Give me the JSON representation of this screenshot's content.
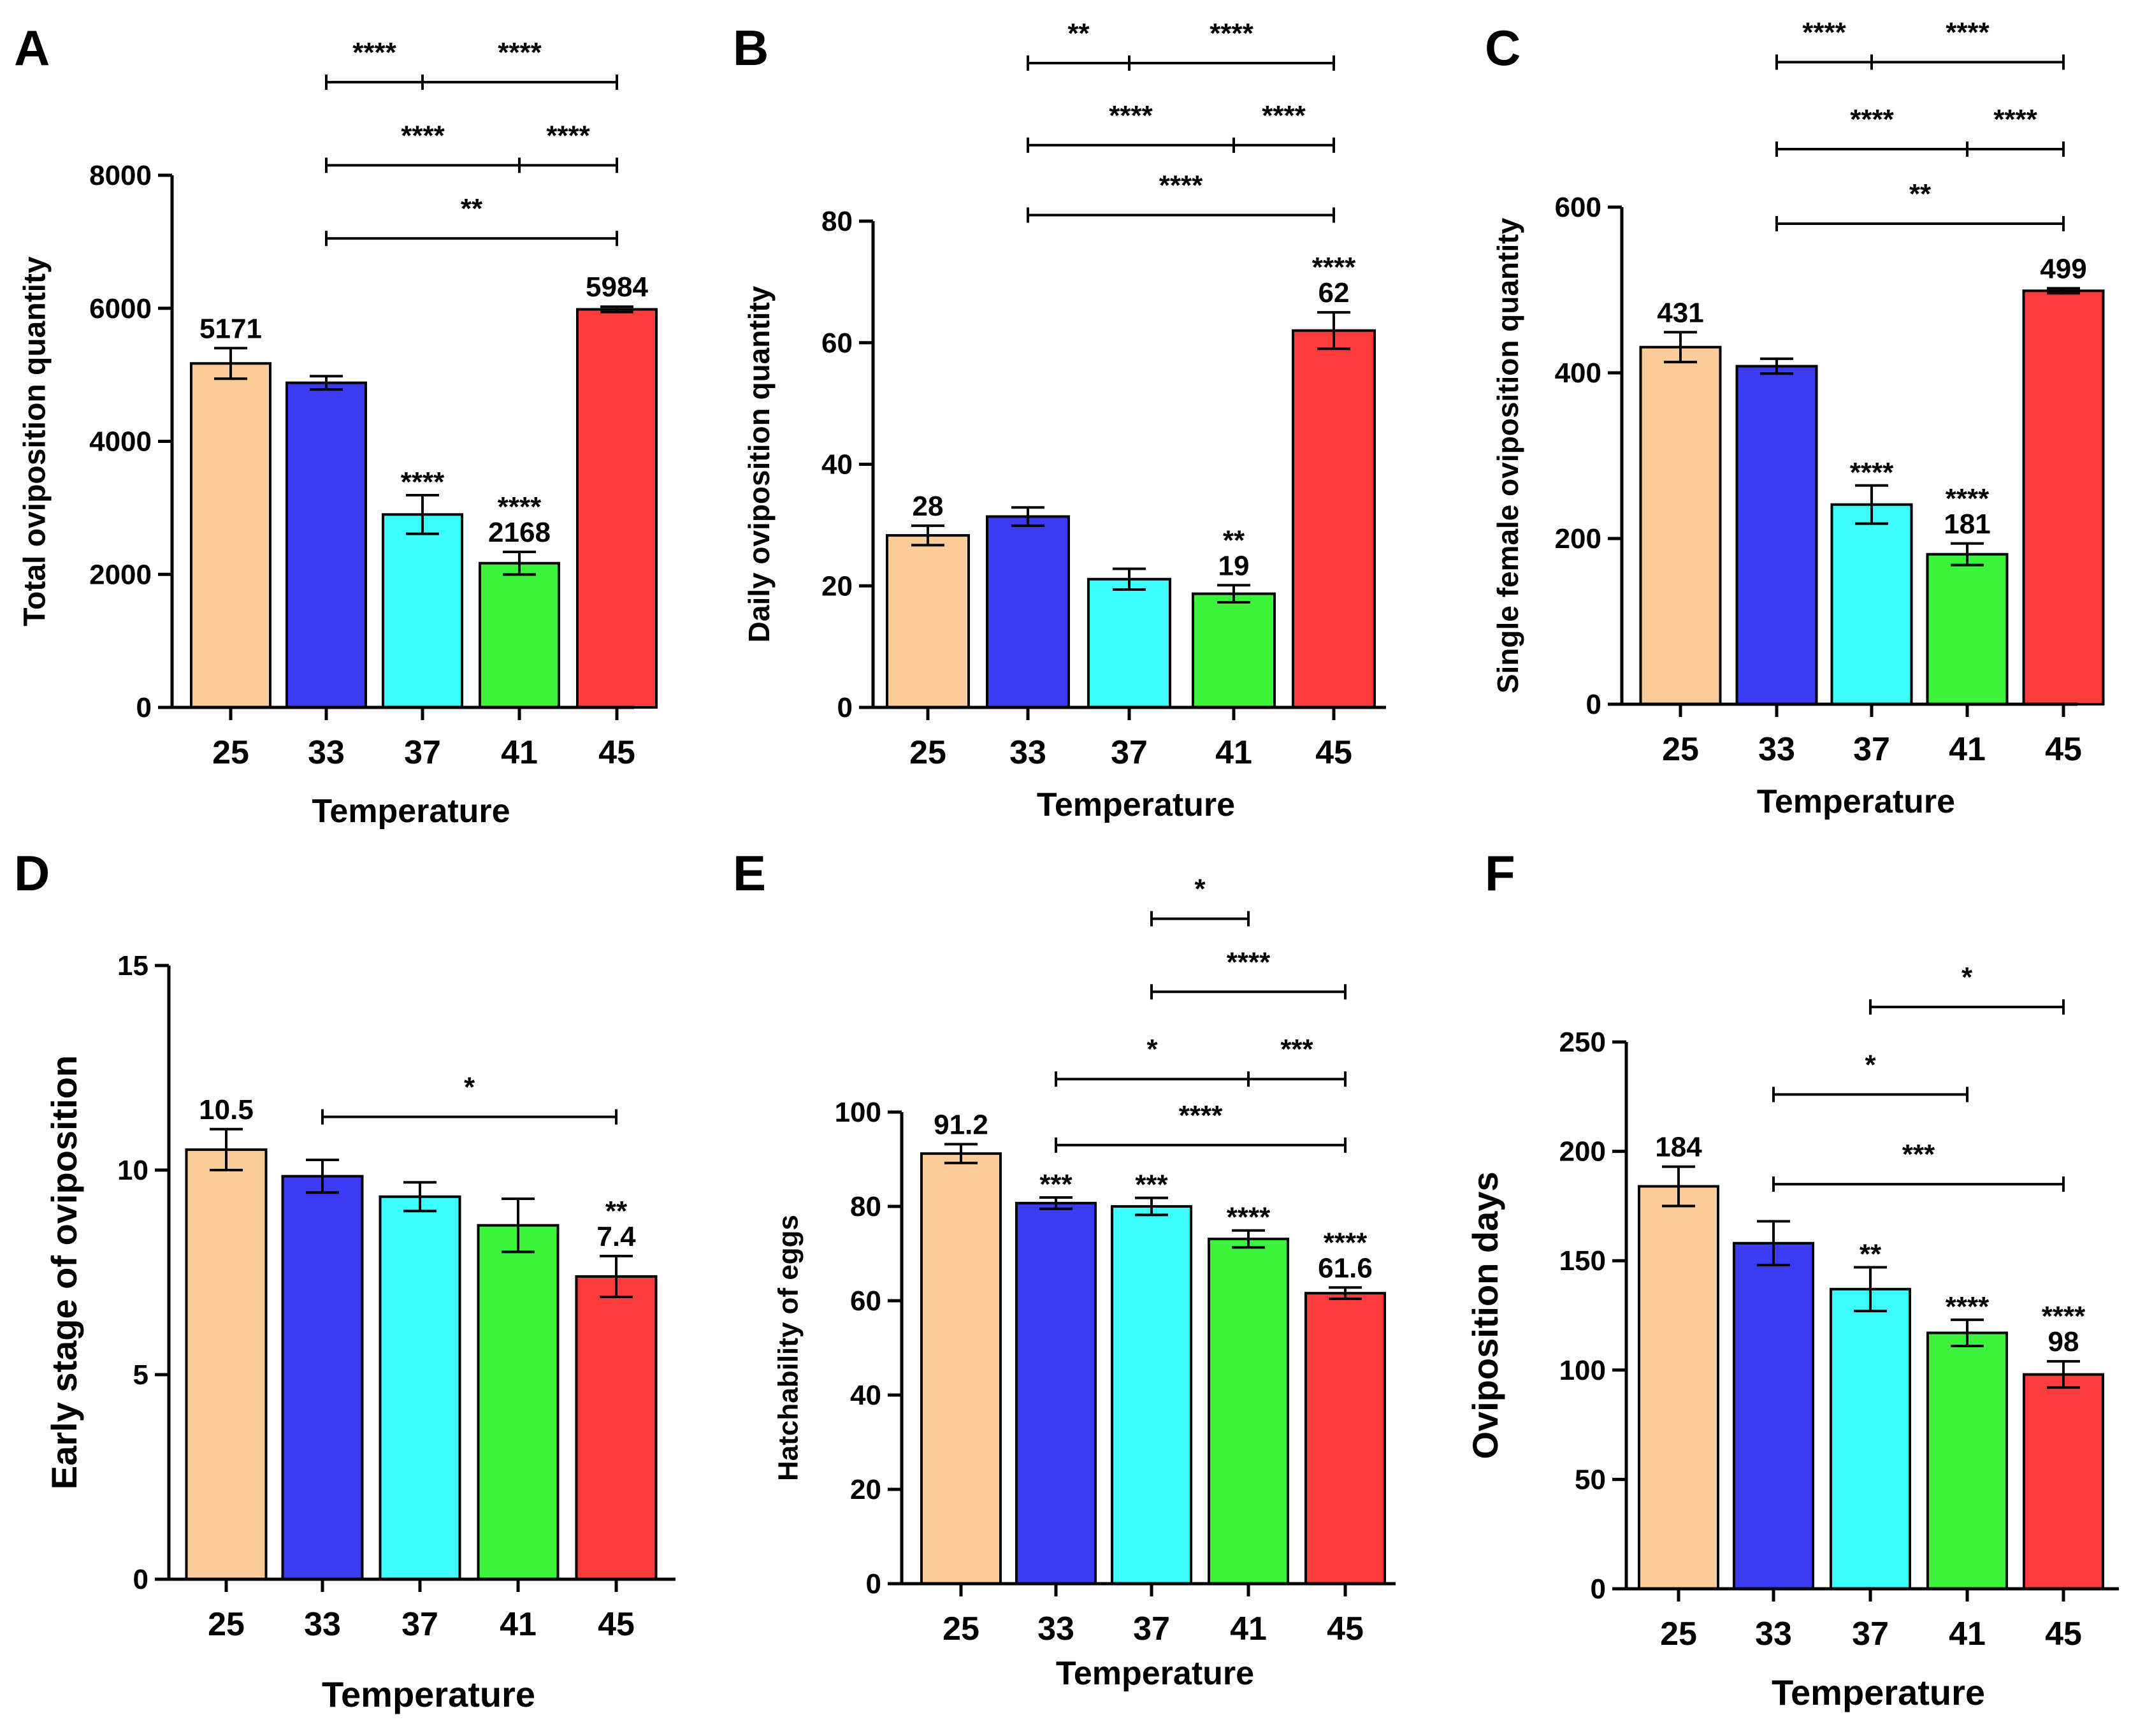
{
  "figure": {
    "colors": {
      "25": "#FBCB9A",
      "33": "#3B3BF4",
      "37": "#3EFBFB",
      "41": "#3CF43C",
      "45": "#FA3C3C",
      "axis": "#000000"
    }
  },
  "chart_data": [
    {
      "panel": "A",
      "type": "bar",
      "xlabel": "Temperature",
      "ylabel": "Total oviposition quantity",
      "categories": [
        "25",
        "33",
        "37",
        "41",
        "45"
      ],
      "values": [
        5171,
        4880,
        2900,
        2168,
        5984
      ],
      "errors": [
        230,
        100,
        290,
        170,
        40
      ],
      "ylim": [
        0,
        8000
      ],
      "yticks": [
        0,
        2000,
        4000,
        6000,
        8000
      ],
      "value_labels": [
        "5171",
        "",
        "",
        "2168",
        "5984"
      ],
      "sig_labels": [
        "",
        "",
        "****",
        "****",
        ""
      ],
      "brackets": [
        {
          "from": "33",
          "to": "45",
          "mid": "37",
          "left": "****",
          "right": "****",
          "y": 9400
        },
        {
          "from": "33",
          "to": "45",
          "mid": "41",
          "left": "****",
          "right": "****",
          "y": 8150
        },
        {
          "from": "33",
          "to": "45",
          "label": "**",
          "y": 7050
        }
      ]
    },
    {
      "panel": "B",
      "type": "bar",
      "xlabel": "Temperature",
      "ylabel": "Daily oviposition quantity",
      "categories": [
        "25",
        "33",
        "37",
        "41",
        "45"
      ],
      "values": [
        28.3,
        31.4,
        21.1,
        18.7,
        62
      ],
      "errors": [
        1.6,
        1.5,
        1.7,
        1.4,
        3.0
      ],
      "ylim": [
        0,
        80
      ],
      "yticks": [
        0,
        20,
        40,
        60,
        80
      ],
      "value_labels": [
        "28",
        "",
        "",
        "19",
        "62"
      ],
      "sig_labels": [
        "",
        "",
        "",
        "**",
        "****"
      ],
      "brackets": [
        {
          "from": "33",
          "to": "45",
          "mid": "37",
          "left": "**",
          "right": "****",
          "y": 106
        },
        {
          "from": "33",
          "to": "45",
          "mid": "41",
          "left": "****",
          "right": "****",
          "y": 92.5
        },
        {
          "from": "33",
          "to": "45",
          "label": "****",
          "y": 81
        }
      ]
    },
    {
      "panel": "C",
      "type": "bar",
      "xlabel": "Temperature",
      "ylabel": "Single female oviposition quantity",
      "categories": [
        "25",
        "33",
        "37",
        "41",
        "45"
      ],
      "values": [
        431,
        408,
        241,
        181,
        499
      ],
      "errors": [
        18,
        9,
        23,
        13,
        3
      ],
      "ylim": [
        0,
        600
      ],
      "yticks": [
        0,
        200,
        400,
        600
      ],
      "value_labels": [
        "431",
        "",
        "",
        "181",
        "499"
      ],
      "sig_labels": [
        "",
        "",
        "****",
        "****",
        ""
      ],
      "brackets": [
        {
          "from": "33",
          "to": "45",
          "mid": "37",
          "left": "****",
          "right": "****",
          "y": 775
        },
        {
          "from": "33",
          "to": "45",
          "mid": "41",
          "left": "****",
          "right": "****",
          "y": 670
        },
        {
          "from": "33",
          "to": "45",
          "label": "**",
          "y": 580
        }
      ]
    },
    {
      "panel": "D",
      "type": "bar",
      "xlabel": "Temperature",
      "ylabel": "Early stage of oviposition",
      "categories": [
        "25",
        "33",
        "37",
        "41",
        "45"
      ],
      "values": [
        10.5,
        9.85,
        9.35,
        8.65,
        7.4
      ],
      "errors": [
        0.5,
        0.4,
        0.35,
        0.65,
        0.5
      ],
      "ylim": [
        0,
        15
      ],
      "yticks": [
        0,
        5,
        10,
        15
      ],
      "value_labels": [
        "10.5",
        "",
        "",
        "",
        "7.4"
      ],
      "sig_labels": [
        "",
        "",
        "",
        "",
        "**"
      ],
      "brackets": [
        {
          "from": "33",
          "to": "45",
          "label": "*",
          "y": 11.3
        }
      ]
    },
    {
      "panel": "E",
      "type": "bar",
      "xlabel": "Temperature",
      "ylabel": "Hatchability of eggs",
      "categories": [
        "25",
        "33",
        "37",
        "41",
        "45"
      ],
      "values": [
        91.2,
        80.7,
        80.0,
        73.1,
        61.6
      ],
      "errors": [
        2.0,
        1.2,
        1.8,
        1.8,
        1.2
      ],
      "ylim": [
        0,
        100
      ],
      "yticks": [
        0,
        20,
        40,
        60,
        80,
        100
      ],
      "value_labels": [
        "91.2",
        "",
        "",
        "",
        "61.6"
      ],
      "sig_labels": [
        "",
        "***",
        "***",
        "****",
        "****"
      ],
      "brackets": [
        {
          "from": "37",
          "to": "41",
          "label": "*",
          "y": 141
        },
        {
          "from": "37",
          "to": "45",
          "label": "****",
          "y": 125.5
        },
        {
          "from": "33",
          "to": "45",
          "mid": "41",
          "left": "*",
          "right": "***",
          "y": 107
        },
        {
          "from": "33",
          "to": "45",
          "label": "****",
          "y": 93
        }
      ]
    },
    {
      "panel": "F",
      "type": "bar",
      "xlabel": "Temperature",
      "ylabel": "Oviposition days",
      "categories": [
        "25",
        "33",
        "37",
        "41",
        "45"
      ],
      "values": [
        184,
        158,
        137,
        117,
        98
      ],
      "errors": [
        9,
        10,
        10,
        6,
        6
      ],
      "ylim": [
        0,
        250
      ],
      "yticks": [
        0,
        50,
        100,
        150,
        200,
        250
      ],
      "value_labels": [
        "184",
        "",
        "",
        "",
        "98"
      ],
      "sig_labels": [
        "",
        "",
        "**",
        "****",
        "****"
      ],
      "brackets": [
        {
          "from": "37",
          "to": "45",
          "label": "*",
          "y": 266
        },
        {
          "from": "33",
          "to": "41",
          "label": "*",
          "y": 226
        },
        {
          "from": "33",
          "to": "45",
          "label": "***",
          "y": 185
        }
      ]
    }
  ]
}
